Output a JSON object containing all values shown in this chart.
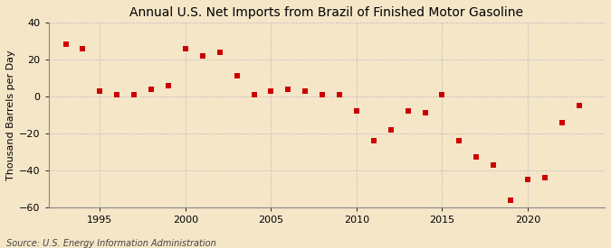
{
  "years": [
    1993,
    1994,
    1995,
    1996,
    1997,
    1998,
    1999,
    2000,
    2001,
    2002,
    2003,
    2004,
    2005,
    2006,
    2007,
    2008,
    2009,
    2010,
    2011,
    2012,
    2013,
    2014,
    2015,
    2016,
    2017,
    2018,
    2019,
    2020,
    2021,
    2022,
    2023
  ],
  "values": [
    28,
    26,
    3,
    1,
    1,
    4,
    6,
    26,
    22,
    24,
    11,
    1,
    3,
    4,
    3,
    1,
    1,
    -8,
    -24,
    -18,
    -8,
    -9,
    1,
    -24,
    -33,
    -37,
    -56,
    -45,
    -44,
    -14,
    -5
  ],
  "marker_color": "#cc0000",
  "marker_size": 4,
  "title": "Annual U.S. Net Imports from Brazil of Finished Motor Gasoline",
  "ylabel": "Thousand Barrels per Day",
  "source": "Source: U.S. Energy Information Administration",
  "ylim": [
    -60,
    40
  ],
  "yticks": [
    -60,
    -40,
    -20,
    0,
    20,
    40
  ],
  "xlim": [
    1992.0,
    2024.5
  ],
  "xticks": [
    1995,
    2000,
    2005,
    2010,
    2015,
    2020
  ],
  "background_color": "#f5e6c8",
  "grid_color": "#bbbbbb",
  "title_fontsize": 10,
  "label_fontsize": 8,
  "tick_fontsize": 8,
  "source_fontsize": 7
}
